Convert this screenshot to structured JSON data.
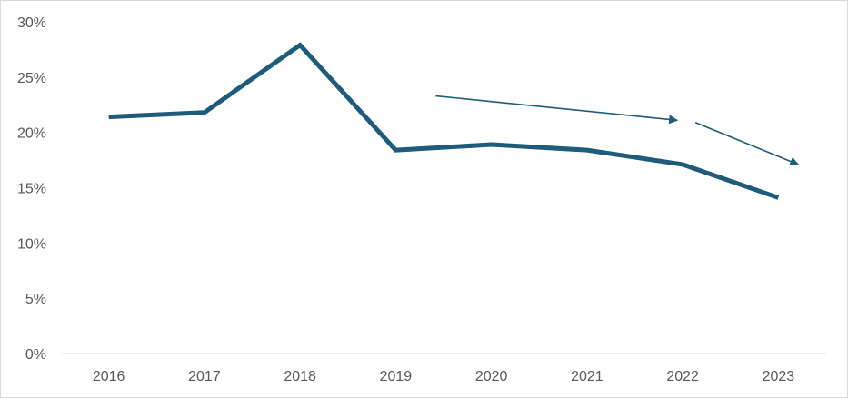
{
  "chart_data": {
    "type": "line",
    "title": "",
    "xlabel": "",
    "ylabel": "",
    "categories": [
      "2016",
      "2017",
      "2018",
      "2019",
      "2020",
      "2021",
      "2022",
      "2023"
    ],
    "series": [
      {
        "values": [
          21.4,
          21.8,
          27.9,
          18.4,
          18.9,
          18.4,
          17.1,
          14.1
        ],
        "color": "#1f5b7a"
      }
    ],
    "ylim": [
      0,
      30
    ],
    "yticks": [
      0,
      5,
      10,
      15,
      20,
      25,
      30
    ],
    "ytick_labels": [
      "0%",
      "5%",
      "10%",
      "15%",
      "20%",
      "25%",
      "30%"
    ],
    "grid": false,
    "legend": "none",
    "annotations": [
      {
        "type": "arrow",
        "from": [
          "2019",
          23.3
        ],
        "to": [
          "2022",
          21.1
        ],
        "color": "#1f5b7a"
      },
      {
        "type": "arrow",
        "from": [
          "2022",
          20.9
        ],
        "to": [
          "2023",
          17.1
        ],
        "color": "#1f5b7a"
      }
    ]
  }
}
